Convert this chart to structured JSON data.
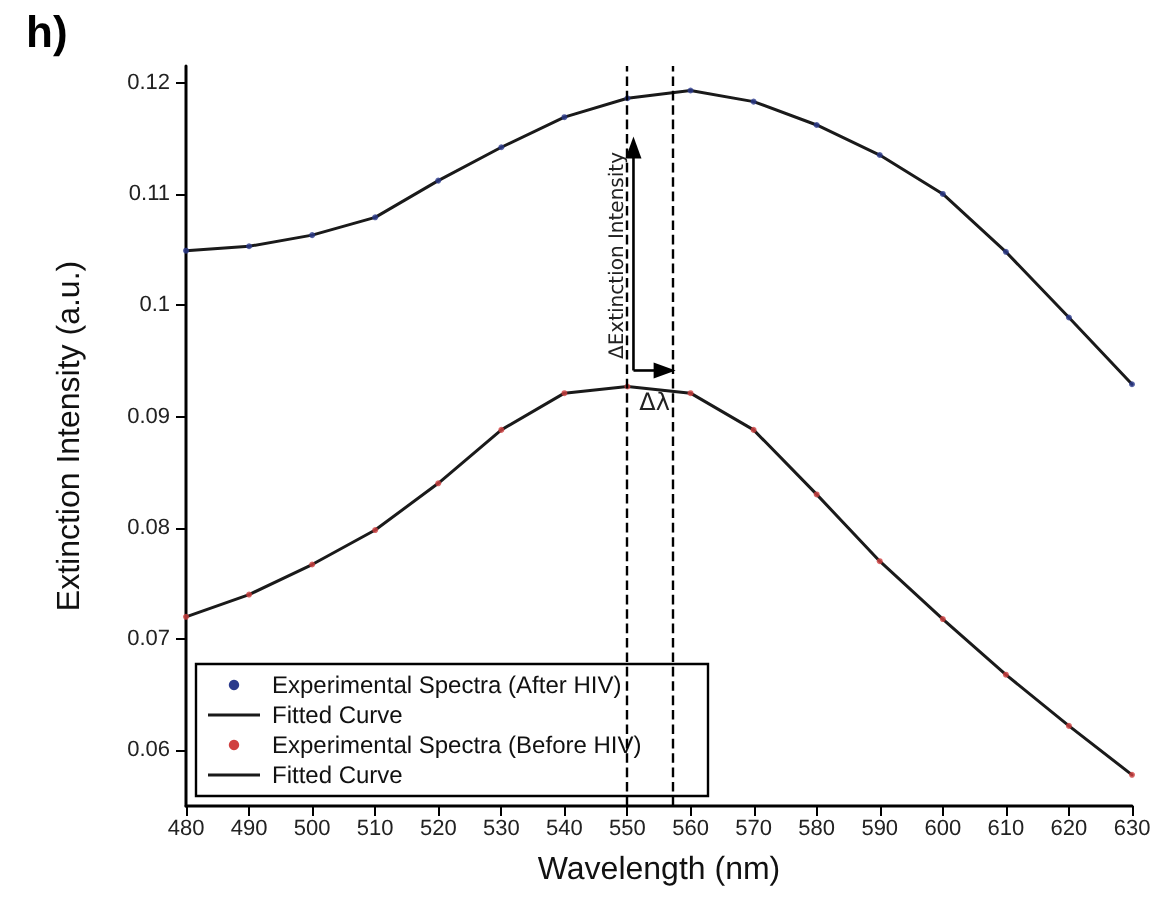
{
  "chart_data": {
    "type": "line",
    "title": "h)",
    "xlabel": "Wavelength (nm)",
    "ylabel": "Extinction Intensity (a.u.)",
    "x": [
      480,
      490,
      500,
      510,
      520,
      530,
      540,
      550,
      560,
      570,
      580,
      590,
      600,
      610,
      620,
      630
    ],
    "series": [
      {
        "name": "Experimental Spectra (After HIV)",
        "type": "scatter",
        "marker": "circle",
        "color": "#2a3a8c",
        "values": [
          0.1049,
          0.1053,
          0.1063,
          0.1079,
          0.1112,
          0.1142,
          0.1169,
          0.1186,
          0.1193,
          0.1183,
          0.1162,
          0.1135,
          0.11,
          0.1048,
          0.0989,
          0.0929
        ]
      },
      {
        "name": "Fitted Curve",
        "marker": "none",
        "color": "#1a1a1a",
        "values": [
          0.1049,
          0.1053,
          0.1063,
          0.1079,
          0.1112,
          0.1142,
          0.1169,
          0.1186,
          0.1193,
          0.1183,
          0.1162,
          0.1135,
          0.11,
          0.1048,
          0.0989,
          0.0929
        ]
      },
      {
        "name": "Experimental Spectra (Before HIV)",
        "type": "scatter",
        "marker": "circle",
        "color": "#d04040",
        "values": [
          0.072,
          0.074,
          0.0767,
          0.0798,
          0.084,
          0.0888,
          0.0921,
          0.0927,
          0.0921,
          0.0888,
          0.083,
          0.077,
          0.0718,
          0.0668,
          0.0622,
          0.0578
        ]
      },
      {
        "name": "Fitted Curve",
        "marker": "none",
        "color": "#1a1a1a",
        "values": [
          0.072,
          0.074,
          0.0767,
          0.0798,
          0.084,
          0.0888,
          0.0921,
          0.0927,
          0.0921,
          0.0888,
          0.083,
          0.077,
          0.0718,
          0.0668,
          0.0622,
          0.0578
        ]
      }
    ],
    "xlim": [
      480,
      630
    ],
    "xticks": [
      480,
      490,
      500,
      510,
      520,
      530,
      540,
      550,
      560,
      570,
      580,
      590,
      600,
      610,
      620,
      630
    ],
    "ylim": [
      0.055,
      0.1215
    ],
    "yticks": [
      0.06,
      0.07,
      0.08,
      0.09,
      0.1,
      0.11,
      0.12
    ],
    "ref_lines": [
      {
        "axis": "x",
        "value": 550,
        "line_style": "dashed",
        "color": "#000000"
      },
      {
        "axis": "x",
        "value": 557,
        "line_style": "dashed",
        "color": "#000000"
      }
    ],
    "annotations": [
      "ΔExtinction Intensity",
      "Δλ"
    ],
    "grid": false,
    "legend": "bottom left",
    "line_style": "solid"
  }
}
